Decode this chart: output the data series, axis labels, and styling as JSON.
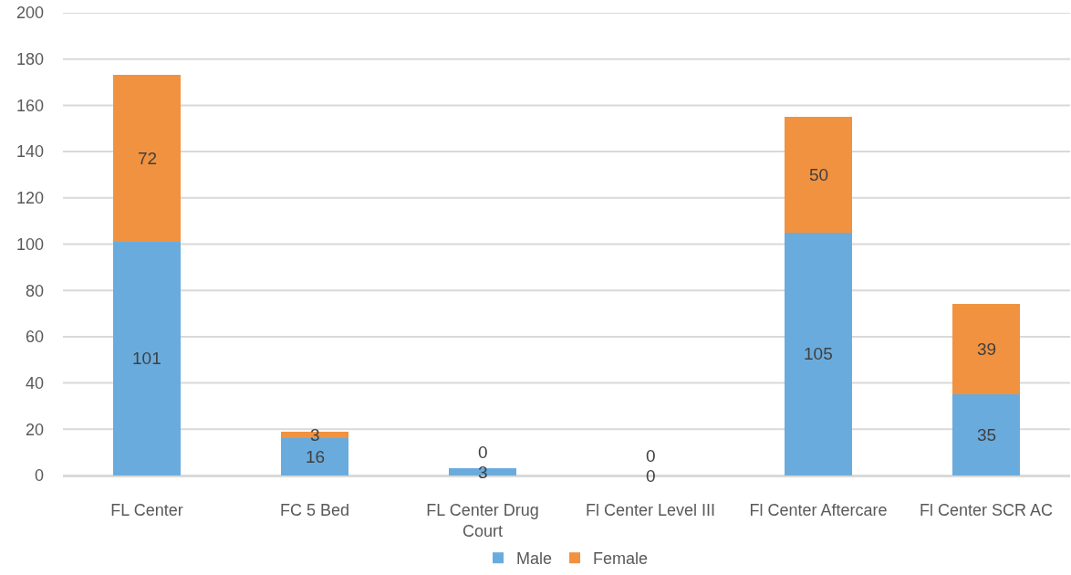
{
  "chart_data": {
    "type": "bar",
    "stacked": true,
    "categories": [
      "FL Center",
      "FC 5 Bed",
      "FL Center Drug Court",
      "Fl Center Level III",
      "Fl Center Aftercare",
      "Fl Center SCR AC"
    ],
    "series": [
      {
        "name": "Male",
        "color": "#6aabdd",
        "values": [
          101,
          16,
          3,
          0,
          105,
          35
        ]
      },
      {
        "name": "Female",
        "color": "#f19240",
        "values": [
          72,
          3,
          0,
          0,
          50,
          39
        ]
      }
    ],
    "ylim": [
      0,
      200
    ],
    "yticks": [
      0,
      20,
      40,
      60,
      80,
      100,
      120,
      140,
      160,
      180,
      200
    ],
    "grid": "y",
    "legend": "bottom",
    "data_labels": true
  }
}
